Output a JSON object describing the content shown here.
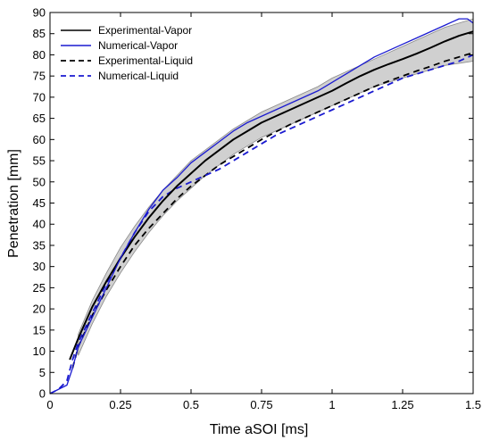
{
  "chart_data": {
    "type": "line",
    "title": "",
    "xlabel": "Time aSOI [ms]",
    "ylabel": "Penetration [mm]",
    "xlim": [
      0,
      1.5
    ],
    "ylim": [
      0,
      90
    ],
    "xticks": [
      0,
      0.25,
      0.5,
      0.75,
      1,
      1.25,
      1.5
    ],
    "xtick_labels": [
      "0",
      "0.25",
      "0.5",
      "0.75",
      "1",
      "1.25",
      "1.5"
    ],
    "yticks": [
      0,
      5,
      10,
      15,
      20,
      25,
      30,
      35,
      40,
      45,
      50,
      55,
      60,
      65,
      70,
      75,
      80,
      85,
      90
    ],
    "ytick_labels": [
      "0",
      "5",
      "10",
      "15",
      "20",
      "25",
      "30",
      "35",
      "40",
      "45",
      "50",
      "55",
      "60",
      "65",
      "70",
      "75",
      "80",
      "85",
      "90"
    ],
    "grid": false,
    "legend_position": "top-left",
    "series": [
      {
        "name": "Experimental-Vapor",
        "color": "#000000",
        "style": "solid",
        "x": [
          0.07,
          0.1,
          0.15,
          0.2,
          0.25,
          0.3,
          0.35,
          0.4,
          0.45,
          0.5,
          0.55,
          0.6,
          0.65,
          0.7,
          0.75,
          0.8,
          0.85,
          0.9,
          0.95,
          1.0,
          1.05,
          1.1,
          1.15,
          1.2,
          1.25,
          1.3,
          1.35,
          1.4,
          1.45,
          1.5
        ],
        "values": [
          8,
          13,
          20.5,
          26.5,
          32,
          37,
          41.5,
          45.5,
          49,
          52,
          55,
          57.5,
          60,
          62,
          64,
          65.5,
          67,
          68.5,
          70,
          71.5,
          73.3,
          75,
          76.5,
          77.8,
          79,
          80.3,
          81.7,
          83.2,
          84.5,
          85.5
        ]
      },
      {
        "name": "Numerical-Vapor",
        "color": "#1a1ad0",
        "style": "solid",
        "x": [
          0.0,
          0.03,
          0.06,
          0.08,
          0.1,
          0.15,
          0.2,
          0.25,
          0.3,
          0.35,
          0.4,
          0.45,
          0.5,
          0.55,
          0.6,
          0.65,
          0.7,
          0.75,
          0.8,
          0.85,
          0.9,
          0.95,
          1.0,
          1.05,
          1.1,
          1.15,
          1.2,
          1.25,
          1.3,
          1.35,
          1.4,
          1.45,
          1.48,
          1.5
        ],
        "values": [
          0,
          1,
          2,
          6,
          11,
          18,
          25,
          32,
          38,
          43.5,
          48,
          51,
          54.5,
          57,
          59.5,
          62,
          64,
          65.5,
          67,
          68.5,
          70,
          71.5,
          73.5,
          75.5,
          77.5,
          79.5,
          81,
          82.5,
          84,
          85.5,
          87,
          88.5,
          88.5,
          87.5
        ]
      },
      {
        "name": "Experimental-Liquid",
        "color": "#000000",
        "style": "dashed",
        "x": [
          0.08,
          0.1,
          0.15,
          0.2,
          0.25,
          0.3,
          0.35,
          0.4,
          0.45,
          0.5,
          0.55,
          0.6,
          0.65,
          0.7,
          0.75,
          0.8,
          0.85,
          0.9,
          0.95,
          1.0,
          1.05,
          1.1,
          1.15,
          1.2,
          1.25,
          1.3,
          1.35,
          1.4,
          1.45,
          1.5
        ],
        "values": [
          6,
          11,
          18.5,
          24.5,
          30,
          35,
          39,
          42.5,
          46,
          49,
          51.5,
          54,
          56,
          58,
          60,
          61.8,
          63.5,
          65,
          66.5,
          68,
          69.5,
          71,
          72.5,
          73.8,
          75,
          76.2,
          77.3,
          78.5,
          79.5,
          80.5
        ]
      },
      {
        "name": "Numerical-Liquid",
        "color": "#1a1ad0",
        "style": "dashed",
        "x": [
          0.0,
          0.03,
          0.06,
          0.08,
          0.1,
          0.15,
          0.2,
          0.25,
          0.3,
          0.35,
          0.4,
          0.45,
          0.5,
          0.55,
          0.6,
          0.65,
          0.7,
          0.75,
          0.8,
          0.85,
          0.9,
          0.95,
          1.0,
          1.05,
          1.1,
          1.15,
          1.2,
          1.25,
          1.3,
          1.35,
          1.4,
          1.45,
          1.5
        ],
        "values": [
          0,
          1,
          3,
          8,
          12,
          19,
          26,
          32,
          38,
          43,
          46.5,
          48.5,
          50,
          51.5,
          53,
          55,
          57,
          59,
          61,
          62.5,
          64,
          65.5,
          67,
          68.5,
          70,
          71.5,
          73,
          74.5,
          75.5,
          76.5,
          77.5,
          78.5,
          80
        ]
      }
    ],
    "uncertainty_band": {
      "color": "#c8c8c8",
      "x": [
        0.1,
        0.15,
        0.2,
        0.25,
        0.3,
        0.35,
        0.4,
        0.45,
        0.5,
        0.55,
        0.6,
        0.65,
        0.7,
        0.75,
        0.8,
        0.85,
        0.9,
        0.95,
        1.0,
        1.05,
        1.1,
        1.15,
        1.2,
        1.25,
        1.3,
        1.35,
        1.4,
        1.45,
        1.5
      ],
      "lower": [
        9,
        16.5,
        23,
        28.5,
        33.5,
        38,
        42,
        45.5,
        48.5,
        51.5,
        54,
        56.5,
        58.5,
        60.5,
        62,
        63.5,
        65,
        66.5,
        68,
        69.5,
        71,
        72.5,
        73.5,
        74.5,
        75.5,
        76.5,
        77.5,
        78,
        78.5
      ],
      "upper": [
        14,
        22,
        28.5,
        34.5,
        39.5,
        44,
        48,
        51.5,
        55,
        57.5,
        60,
        62.5,
        64.5,
        66.5,
        68,
        69.5,
        71,
        72.5,
        74.5,
        76,
        77.5,
        79,
        80.5,
        82,
        83.5,
        85,
        86.5,
        87.5,
        88.5
      ]
    }
  }
}
